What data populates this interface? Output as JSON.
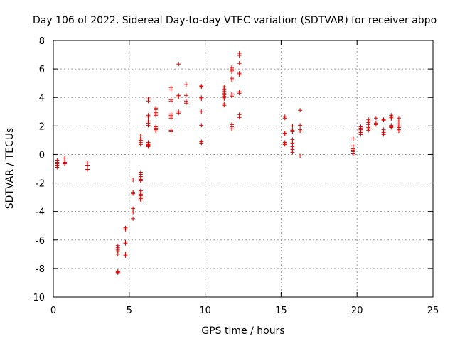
{
  "chart_data": {
    "type": "scatter",
    "title": "Day 106 of 2022, Sidereal Day-to-day VTEC variation (SDTVAR) for receiver abpo",
    "xlabel": "GPS time / hours",
    "ylabel": "SDTVAR / TECUs",
    "xlim": [
      0,
      25
    ],
    "ylim": [
      -10,
      8
    ],
    "xticks": [
      0,
      5,
      10,
      15,
      20,
      25
    ],
    "yticks": [
      -10,
      -8,
      -6,
      -4,
      -2,
      0,
      2,
      4,
      6,
      8
    ],
    "xtick_labels": [
      "0",
      "5",
      "10",
      "15",
      "20",
      "25"
    ],
    "ytick_labels": [
      "-10",
      "-8",
      "-6",
      "-4",
      "-2",
      "0",
      "2",
      "4",
      "6",
      "8"
    ],
    "grid": true,
    "marker": "plus",
    "color": "#e00000",
    "series": [
      {
        "name": "SDTVAR",
        "x": [
          0.25,
          0.25,
          0.25,
          0.25,
          0.25,
          0.75,
          0.75,
          0.75,
          0.75,
          2.25,
          2.25,
          2.25,
          4.25,
          4.25,
          4.25,
          4.25,
          4.25,
          4.25,
          4.25,
          4.25,
          4.75,
          4.75,
          4.75,
          4.75,
          4.75,
          4.75,
          5.25,
          5.25,
          5.25,
          5.25,
          5.25,
          5.25,
          5.75,
          5.75,
          5.75,
          5.75,
          5.75,
          5.75,
          5.75,
          5.75,
          5.75,
          5.75,
          5.75,
          5.75,
          5.75,
          5.75,
          5.75,
          5.75,
          5.75,
          5.75,
          6.25,
          6.25,
          6.25,
          6.25,
          6.25,
          6.25,
          6.25,
          6.25,
          6.25,
          6.25,
          6.25,
          6.25,
          6.25,
          6.75,
          6.75,
          6.75,
          6.75,
          6.75,
          6.75,
          6.75,
          6.75,
          6.75,
          7.75,
          7.75,
          7.75,
          7.75,
          7.75,
          7.75,
          7.75,
          7.75,
          7.75,
          7.75,
          8.25,
          8.25,
          8.25,
          8.25,
          8.25,
          8.75,
          8.75,
          8.75,
          8.75,
          9.75,
          9.75,
          9.75,
          9.75,
          9.75,
          9.75,
          9.75,
          9.75,
          11.25,
          11.25,
          11.25,
          11.25,
          11.25,
          11.25,
          11.25,
          11.25,
          11.25,
          11.25,
          11.75,
          11.75,
          11.75,
          11.75,
          11.75,
          11.75,
          11.75,
          11.75,
          11.75,
          11.75,
          11.75,
          12.25,
          12.25,
          12.25,
          12.25,
          12.25,
          12.25,
          12.25,
          12.25,
          12.25,
          15.25,
          15.25,
          15.25,
          15.25,
          15.25,
          15.25,
          15.25,
          15.75,
          15.75,
          15.75,
          15.75,
          15.75,
          15.75,
          15.75,
          15.75,
          16.25,
          16.25,
          16.25,
          16.25,
          16.25,
          19.75,
          19.75,
          19.75,
          19.75,
          19.75,
          19.75,
          20.25,
          20.25,
          20.25,
          20.25,
          20.25,
          20.25,
          20.75,
          20.75,
          20.75,
          20.75,
          20.75,
          20.75,
          20.75,
          21.25,
          21.25,
          21.25,
          21.75,
          21.75,
          21.75,
          21.75,
          21.75,
          22.25,
          22.25,
          22.25,
          22.25,
          22.25,
          22.25,
          22.25,
          22.75,
          22.75,
          22.75,
          22.75,
          22.75,
          22.75,
          22.75
        ],
        "y": [
          -0.4,
          -0.55,
          -0.65,
          -0.75,
          -0.9,
          -0.25,
          -0.45,
          -0.55,
          -0.65,
          -0.6,
          -0.75,
          -1.05,
          -6.4,
          -6.55,
          -6.7,
          -6.8,
          -7.0,
          -8.2,
          -8.25,
          -8.3,
          -5.15,
          -5.25,
          -6.15,
          -6.25,
          -7.0,
          -7.1,
          -1.8,
          -2.65,
          -2.75,
          -3.8,
          -4.05,
          -4.5,
          1.3,
          1.1,
          1.0,
          0.85,
          0.7,
          -1.25,
          -1.4,
          -1.55,
          -1.65,
          -1.75,
          -1.85,
          -2.55,
          -2.7,
          -2.8,
          -2.9,
          -3.0,
          -3.1,
          -3.2,
          3.9,
          3.75,
          2.75,
          2.65,
          2.35,
          2.2,
          2.05,
          0.85,
          0.75,
          0.7,
          0.65,
          0.6,
          0.55,
          3.25,
          3.15,
          2.95,
          2.85,
          2.75,
          1.95,
          1.85,
          1.75,
          1.65,
          4.7,
          4.55,
          3.85,
          3.75,
          2.85,
          2.75,
          2.65,
          2.55,
          1.7,
          1.6,
          6.35,
          4.15,
          4.05,
          3.0,
          2.9,
          4.9,
          4.15,
          3.75,
          3.6,
          4.8,
          4.75,
          4.0,
          3.9,
          3.0,
          2.05,
          0.9,
          0.8,
          4.75,
          4.6,
          4.45,
          4.3,
          4.2,
          4.1,
          4.0,
          3.9,
          3.55,
          3.45,
          6.1,
          6.0,
          5.9,
          5.8,
          5.35,
          5.25,
          4.25,
          4.1,
          2.1,
          1.95,
          1.8,
          7.1,
          6.95,
          6.4,
          5.7,
          5.6,
          4.4,
          4.3,
          2.8,
          2.6,
          2.65,
          2.55,
          1.5,
          1.45,
          0.85,
          0.75,
          0.7,
          2.0,
          1.7,
          1.6,
          1.05,
          0.8,
          0.55,
          0.35,
          0.15,
          3.1,
          2.05,
          1.75,
          1.65,
          -0.1,
          1.1,
          0.6,
          0.4,
          0.3,
          0.2,
          0.05,
          1.95,
          1.85,
          1.75,
          1.65,
          1.55,
          1.4,
          2.45,
          2.35,
          2.25,
          2.1,
          1.9,
          1.8,
          1.7,
          2.55,
          2.2,
          2.1,
          2.45,
          2.4,
          1.75,
          1.55,
          1.4,
          2.75,
          2.65,
          2.6,
          2.5,
          2.05,
          1.95,
          1.9,
          2.55,
          2.35,
          2.15,
          2.0,
          1.9,
          1.75,
          1.65
        ]
      }
    ]
  }
}
